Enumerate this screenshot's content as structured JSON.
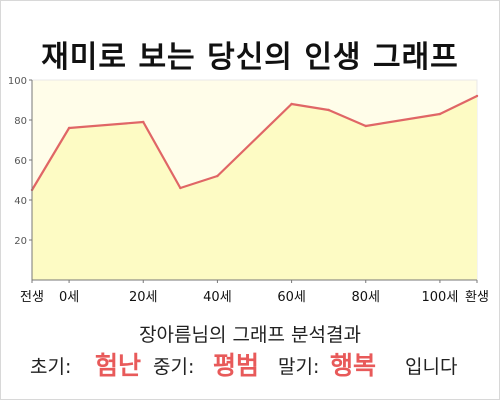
{
  "title": "재미로 보는 당신의 인생 그래프",
  "chart_data": {
    "type": "area",
    "x": [
      -10,
      0,
      20,
      30,
      40,
      60,
      70,
      80,
      100,
      110
    ],
    "values": [
      45,
      76,
      79,
      46,
      52,
      88,
      85,
      77,
      83,
      92
    ],
    "xticks": [
      {
        "x": -10,
        "label": "전생"
      },
      {
        "x": 0,
        "label": "0세"
      },
      {
        "x": 20,
        "label": "20세"
      },
      {
        "x": 40,
        "label": "40세"
      },
      {
        "x": 60,
        "label": "60세"
      },
      {
        "x": 80,
        "label": "80세"
      },
      {
        "x": 100,
        "label": "100세"
      },
      {
        "x": 110,
        "label": "환생"
      }
    ],
    "yticks": [
      20,
      40,
      60,
      80,
      100
    ],
    "xlim": [
      -10,
      110
    ],
    "ylim": [
      0,
      100
    ],
    "grid": false,
    "colors": {
      "line": "#e06666",
      "fill": "#fdfbc4",
      "plot_bg": "#fffde9"
    }
  },
  "summary": {
    "heading": "장아름님의 그래프 분석결과",
    "early_label": "초기:",
    "early_value": "험난",
    "middle_label": "중기:",
    "middle_value": "평범",
    "late_label": "말기:",
    "late_value": "행복",
    "closing": "입니다"
  }
}
